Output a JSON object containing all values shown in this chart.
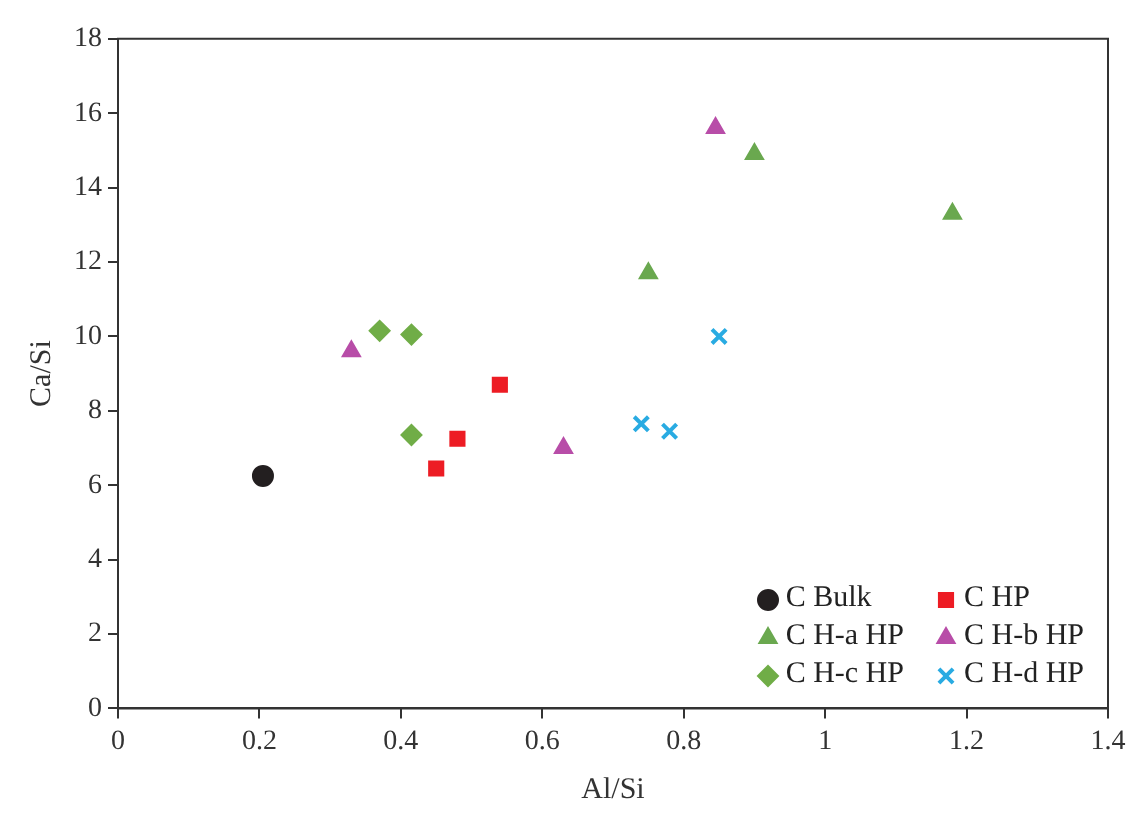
{
  "chart_data": {
    "type": "scatter",
    "xlabel": "Al/Si",
    "ylabel": "Ca/Si",
    "xlim": [
      0,
      1.4
    ],
    "xticks": [
      0,
      0.2,
      0.4,
      0.6,
      0.8,
      1,
      1.2,
      1.4
    ],
    "ylim": [
      0,
      18
    ],
    "yticks": [
      0,
      2,
      4,
      6,
      8,
      10,
      12,
      14,
      16,
      18
    ],
    "grid": false,
    "legend": "bottom right",
    "series": [
      {
        "name": "C Bulk",
        "color": "#231f20",
        "marker": "circle",
        "x": [
          0.205
        ],
        "values": [
          6.25
        ]
      },
      {
        "name": "C HP",
        "color": "#ed1c24",
        "marker": "square",
        "x": [
          0.45,
          0.48,
          0.54
        ],
        "values": [
          6.45,
          7.25,
          8.7
        ]
      },
      {
        "name": "C H-a HP",
        "color": "#6aa84f",
        "marker": "triangle",
        "x": [
          0.75,
          0.9,
          1.18
        ],
        "values": [
          11.7,
          14.9,
          13.3
        ]
      },
      {
        "name": "C H-b HP",
        "color": "#b84da8",
        "marker": "triangle",
        "x": [
          0.33,
          0.63,
          0.845
        ],
        "values": [
          9.6,
          7.0,
          15.6
        ]
      },
      {
        "name": "C H-c HP",
        "color": "#70ad47",
        "marker": "diamond",
        "x": [
          0.37,
          0.415,
          0.415
        ],
        "values": [
          10.15,
          10.05,
          7.35
        ]
      },
      {
        "name": "C H-d HP",
        "color": "#29abe2",
        "marker": "cross",
        "x": [
          0.74,
          0.78,
          0.85
        ],
        "values": [
          7.65,
          7.45,
          10.0
        ]
      }
    ]
  }
}
